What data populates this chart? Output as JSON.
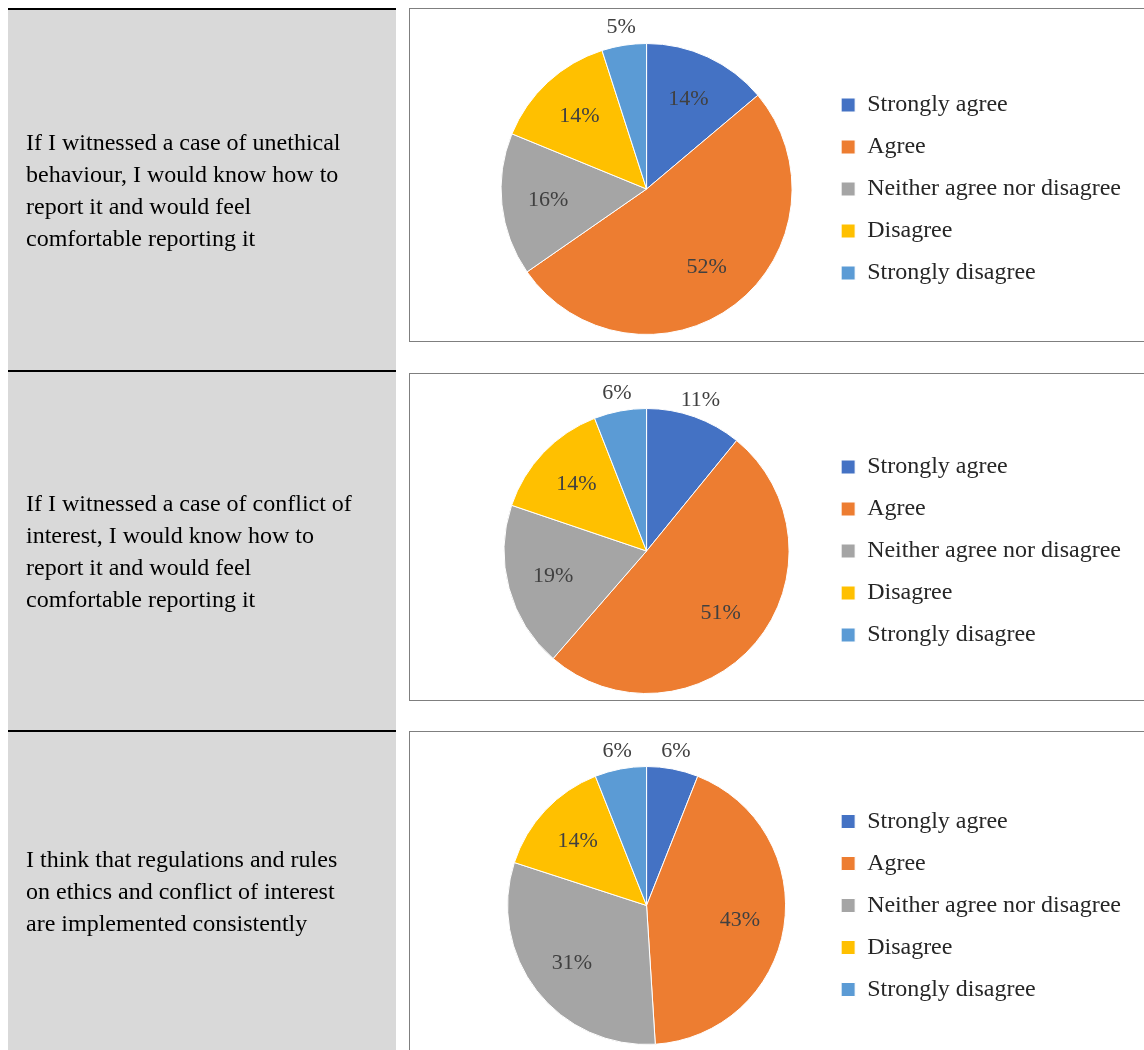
{
  "chart_data": [
    {
      "type": "pie",
      "title": "If I witnessed a case of unethical behaviour, I would know how to report it and would feel comfortable reporting it",
      "categories": [
        "Strongly agree",
        "Agree",
        "Neither agree nor disagree",
        "Disagree",
        "Strongly disagree"
      ],
      "values": [
        14,
        52,
        16,
        14,
        5
      ],
      "value_labels": [
        "14%",
        "52%",
        "16%",
        "14%",
        "5%"
      ],
      "colors": [
        "#4472c4",
        "#ed7d31",
        "#a5a5a5",
        "#ffc000",
        "#5b9bd5"
      ],
      "legend": "right"
    },
    {
      "type": "pie",
      "title": "If I witnessed a case of conflict of interest, I would know how to report it and would feel comfortable reporting it",
      "categories": [
        "Strongly agree",
        "Agree",
        "Neither agree nor disagree",
        "Disagree",
        "Strongly disagree"
      ],
      "values": [
        11,
        51,
        19,
        14,
        6
      ],
      "value_labels": [
        "11%",
        "51%",
        "19%",
        "14%",
        "6%"
      ],
      "colors": [
        "#4472c4",
        "#ed7d31",
        "#a5a5a5",
        "#ffc000",
        "#5b9bd5"
      ],
      "legend": "right"
    },
    {
      "type": "pie",
      "title": "I think that regulations and rules on ethics and conflict of interest are implemented consistently",
      "categories": [
        "Strongly agree",
        "Agree",
        "Neither agree nor disagree",
        "Disagree",
        "Strongly disagree"
      ],
      "values": [
        6,
        43,
        31,
        14,
        6
      ],
      "value_labels": [
        "6%",
        "43%",
        "31%",
        "14%",
        "6%"
      ],
      "colors": [
        "#4472c4",
        "#ed7d31",
        "#a5a5a5",
        "#ffc000",
        "#5b9bd5"
      ],
      "legend": "right"
    }
  ]
}
